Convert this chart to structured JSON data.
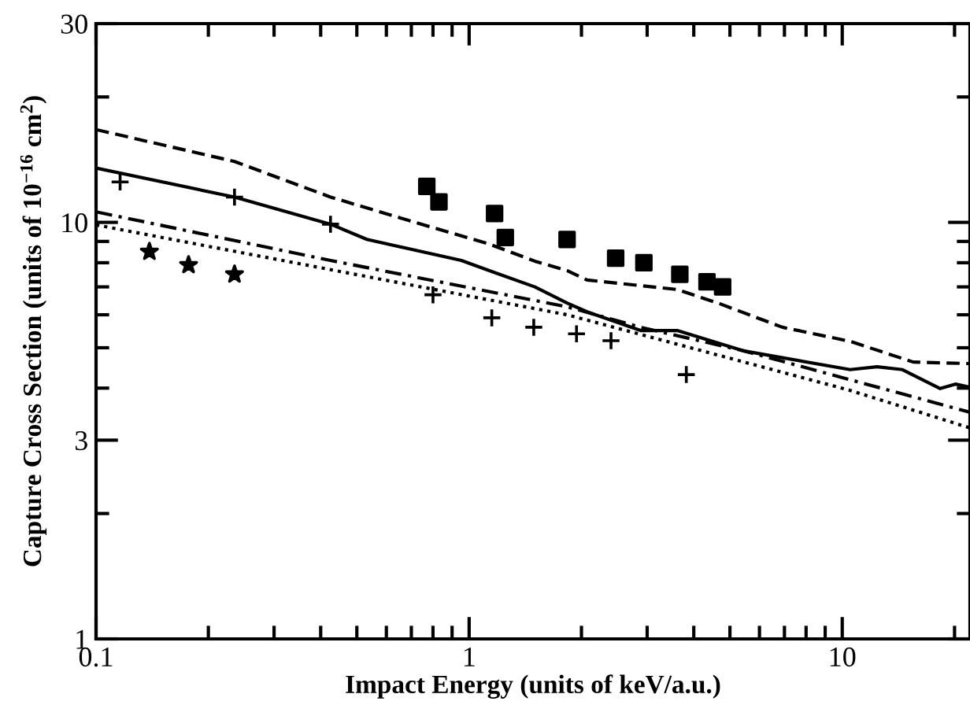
{
  "chart_data": {
    "type": "line",
    "xlabel": "Impact Energy (units of keV/a.u.)",
    "ylabel": "Capture Cross Section (units of 10$^{−16}$ cm$^{2}$)",
    "log": "xy",
    "grid": false,
    "xlim": [
      0.1,
      22
    ],
    "ylim": [
      1,
      30
    ],
    "xticks": [
      0.1,
      {
        "value": 0.2,
        "label": null
      },
      {
        "value": 0.3,
        "label": null
      },
      {
        "value": 0.4,
        "label": null
      },
      {
        "value": 0.5,
        "label": null
      },
      {
        "value": 0.6,
        "label": null
      },
      {
        "value": 0.7,
        "label": null
      },
      {
        "value": 0.8,
        "label": null
      },
      {
        "value": 0.9,
        "label": null
      },
      1,
      {
        "value": 2,
        "label": null
      },
      {
        "value": 3,
        "label": null
      },
      {
        "value": 4,
        "label": null
      },
      {
        "value": 5,
        "label": null
      },
      {
        "value": 6,
        "label": null
      },
      {
        "value": 7,
        "label": null
      },
      {
        "value": 8,
        "label": null
      },
      {
        "value": 9,
        "label": null
      },
      10,
      {
        "value": 20,
        "label": null
      }
    ],
    "yticks": [
      1,
      {
        "value": 2,
        "label": null
      },
      3,
      {
        "value": 4,
        "label": null
      },
      {
        "value": 5,
        "label": null
      },
      {
        "value": 6,
        "label": null
      },
      {
        "value": 7,
        "label": null
      },
      {
        "value": 8,
        "label": null
      },
      {
        "value": 9,
        "label": null
      },
      10,
      {
        "value": 20,
        "label": null
      },
      30
    ],
    "series": [
      {
        "line_style": "solid",
        "color": "#000000",
        "x": [
          0.1,
          0.235,
          0.425,
          0.532,
          0.953,
          1.16,
          1.5,
          1.83,
          2.07,
          2.88,
          3.61,
          5.47,
          10.5,
          12.4,
          14.5,
          18.3,
          20.1,
          22
        ],
        "values": [
          13.5,
          11.5,
          9.9,
          9.1,
          8.1,
          7.6,
          7.0,
          6.4,
          6.1,
          5.5,
          5.5,
          4.91,
          4.43,
          4.5,
          4.43,
          3.99,
          4.09,
          4.02
        ]
      },
      {
        "line_style": "dashed",
        "color": "#000000",
        "x": [
          0.1,
          0.235,
          0.425,
          0.69,
          1.12,
          1.5,
          1.83,
          2.07,
          3.61,
          4.69,
          6.91,
          10.5,
          15.5,
          22
        ],
        "values": [
          16.7,
          14.0,
          11.5,
          10.1,
          8.9,
          8.07,
          7.66,
          7.27,
          6.9,
          6.38,
          5.6,
          5.18,
          4.62,
          4.58
        ]
      },
      {
        "line_style": "dashdot",
        "color": "#000000",
        "x": [
          0.1,
          0.425,
          1.83,
          2.88,
          5.47,
          22
        ],
        "values": [
          10.6,
          8.1,
          6.27,
          5.6,
          4.91,
          3.5
        ]
      },
      {
        "line_style": "dotted",
        "color": "#000000",
        "x": [
          0.1,
          1.83,
          10.5,
          22
        ],
        "values": [
          9.86,
          6.0,
          3.95,
          3.21
        ]
      },
      {
        "type": "scatter",
        "marker": "cross",
        "color": "#000000",
        "x": [
          0.116,
          0.235,
          0.425,
          0.8,
          1.15,
          1.49,
          1.94,
          2.4,
          3.82
        ],
        "values": [
          12.5,
          11.5,
          9.9,
          6.7,
          5.9,
          5.6,
          5.4,
          5.2,
          4.31
        ]
      },
      {
        "type": "scatter",
        "marker": "star",
        "color": "#000000",
        "x": [
          0.139,
          0.177,
          0.235
        ],
        "values": [
          8.5,
          7.9,
          7.5
        ]
      },
      {
        "type": "scatter",
        "marker": "square",
        "color": "#000000",
        "x": [
          0.77,
          0.83,
          1.17,
          1.25,
          1.83,
          2.47,
          2.94,
          3.67,
          4.34,
          4.78
        ],
        "values": [
          12.2,
          11.2,
          10.5,
          9.2,
          9.1,
          8.2,
          8.0,
          7.5,
          7.2,
          7.0
        ]
      }
    ]
  }
}
